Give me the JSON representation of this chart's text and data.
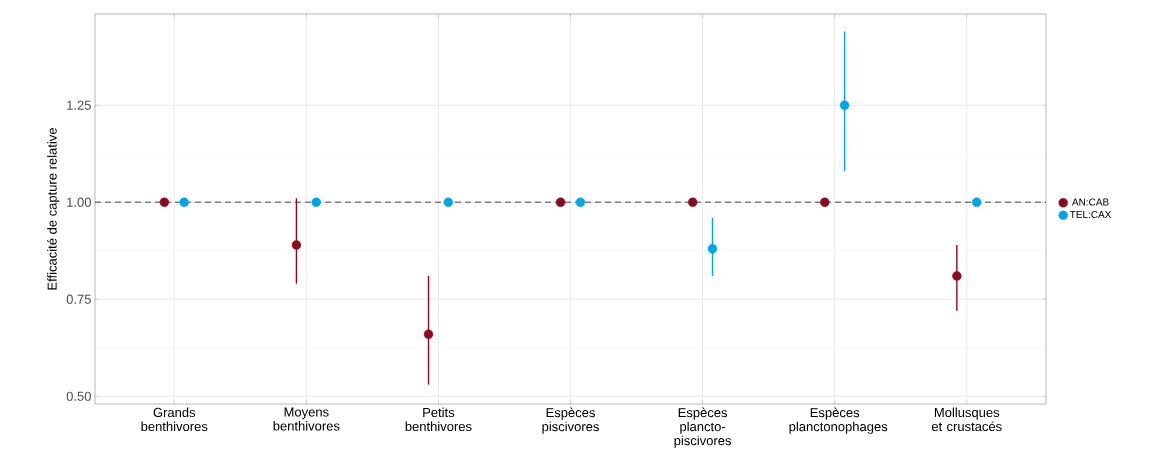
{
  "chart_data": {
    "type": "scatter",
    "ylabel": "Efficacité de capture relative",
    "categories": [
      "Grands benthivores",
      "Moyens benthivores",
      "Petits benthivores",
      "Espèces piscivores",
      "Espèces plancto-piscivores",
      "Espèces planctonophages",
      "Mollusques et crustacés"
    ],
    "series": [
      {
        "name": "AN:CAB",
        "color": "#8b0a1f",
        "values": [
          1.0,
          0.89,
          0.66,
          1.0,
          1.0,
          1.0,
          0.81
        ],
        "errors": [
          null,
          [
            0.79,
            1.01
          ],
          [
            0.53,
            0.81
          ],
          null,
          null,
          null,
          [
            0.72,
            0.89
          ]
        ]
      },
      {
        "name": "TEL:CAX",
        "color": "#00a5e8",
        "values": [
          1.0,
          1.0,
          1.0,
          1.0,
          0.88,
          1.25,
          1.0
        ],
        "errors": [
          null,
          null,
          null,
          null,
          [
            0.81,
            0.96
          ],
          [
            1.08,
            1.44
          ],
          null
        ]
      }
    ],
    "ylim": [
      0.48,
      1.485
    ],
    "yticks": [
      {
        "value": 0.5,
        "label": "0.50"
      },
      0.75,
      {
        "value": 1.0,
        "label": "1.00"
      },
      1.25
    ],
    "ref_lines": [
      {
        "axis": "y",
        "value": 1.0,
        "line_style": "dashed",
        "color": "#222222"
      }
    ],
    "grid": true,
    "legend": "right",
    "marker": "circle"
  }
}
